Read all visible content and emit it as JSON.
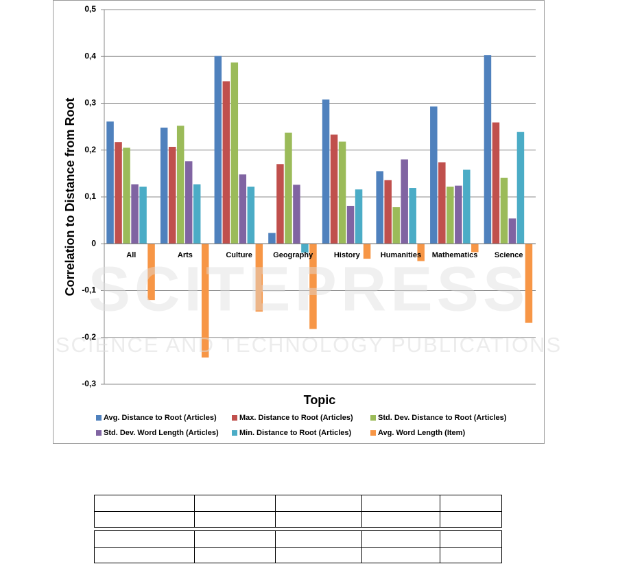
{
  "chart_data": {
    "type": "bar",
    "x_label": "Topic",
    "y_label": "Correlation to Distance from Root",
    "categories": [
      "All",
      "Arts",
      "Culture",
      "Geography",
      "History",
      "Humanities",
      "Mathematics",
      "Science"
    ],
    "series": [
      {
        "name": "Avg. Distance to Root (Articles)",
        "color": "#4f81bd",
        "values": [
          0.261,
          0.248,
          0.401,
          0.023,
          0.308,
          0.155,
          0.293,
          0.403
        ]
      },
      {
        "name": "Max. Distance to Root (Articles)",
        "color": "#c0504d",
        "values": [
          0.217,
          0.207,
          0.347,
          0.17,
          0.233,
          0.136,
          0.174,
          0.259
        ]
      },
      {
        "name": "Std. Dev. Distance to Root (Articles)",
        "color": "#9bbb59",
        "values": [
          0.205,
          0.252,
          0.387,
          0.237,
          0.218,
          0.078,
          0.122,
          0.141
        ]
      },
      {
        "name": "Std. Dev. Word Length (Articles)",
        "color": "#8064a2",
        "values": [
          0.127,
          0.176,
          0.148,
          0.126,
          0.081,
          0.18,
          0.124,
          0.054
        ]
      },
      {
        "name": "Min. Distance to Root (Articles)",
        "color": "#4bacc6",
        "values": [
          0.122,
          0.127,
          0.122,
          -0.019,
          0.116,
          0.119,
          0.158,
          0.239
        ]
      },
      {
        "name": "Avg. Word Length (Item)",
        "color": "#f79646",
        "values": [
          -0.12,
          -0.243,
          -0.145,
          -0.182,
          -0.032,
          -0.037,
          -0.018,
          -0.169
        ]
      }
    ],
    "ylim": [
      -0.3,
      0.5
    ],
    "yticks": [
      {
        "value": -0.3,
        "label": "-0,3"
      },
      {
        "value": -0.2,
        "label": "-0,2"
      },
      {
        "value": -0.1,
        "label": "-0,1"
      },
      0,
      {
        "value": 0.1,
        "label": "0,1"
      },
      {
        "value": 0.2,
        "label": "0,2"
      },
      {
        "value": 0.3,
        "label": "0,3"
      },
      {
        "value": 0.4,
        "label": "0,4"
      },
      {
        "value": 0.5,
        "label": "0,5"
      }
    ],
    "grid": true
  },
  "watermark": {
    "title": "SCITEPRESS",
    "subtitle": "SCIENCE AND TECHNOLOGY PUBLICATIONS"
  }
}
